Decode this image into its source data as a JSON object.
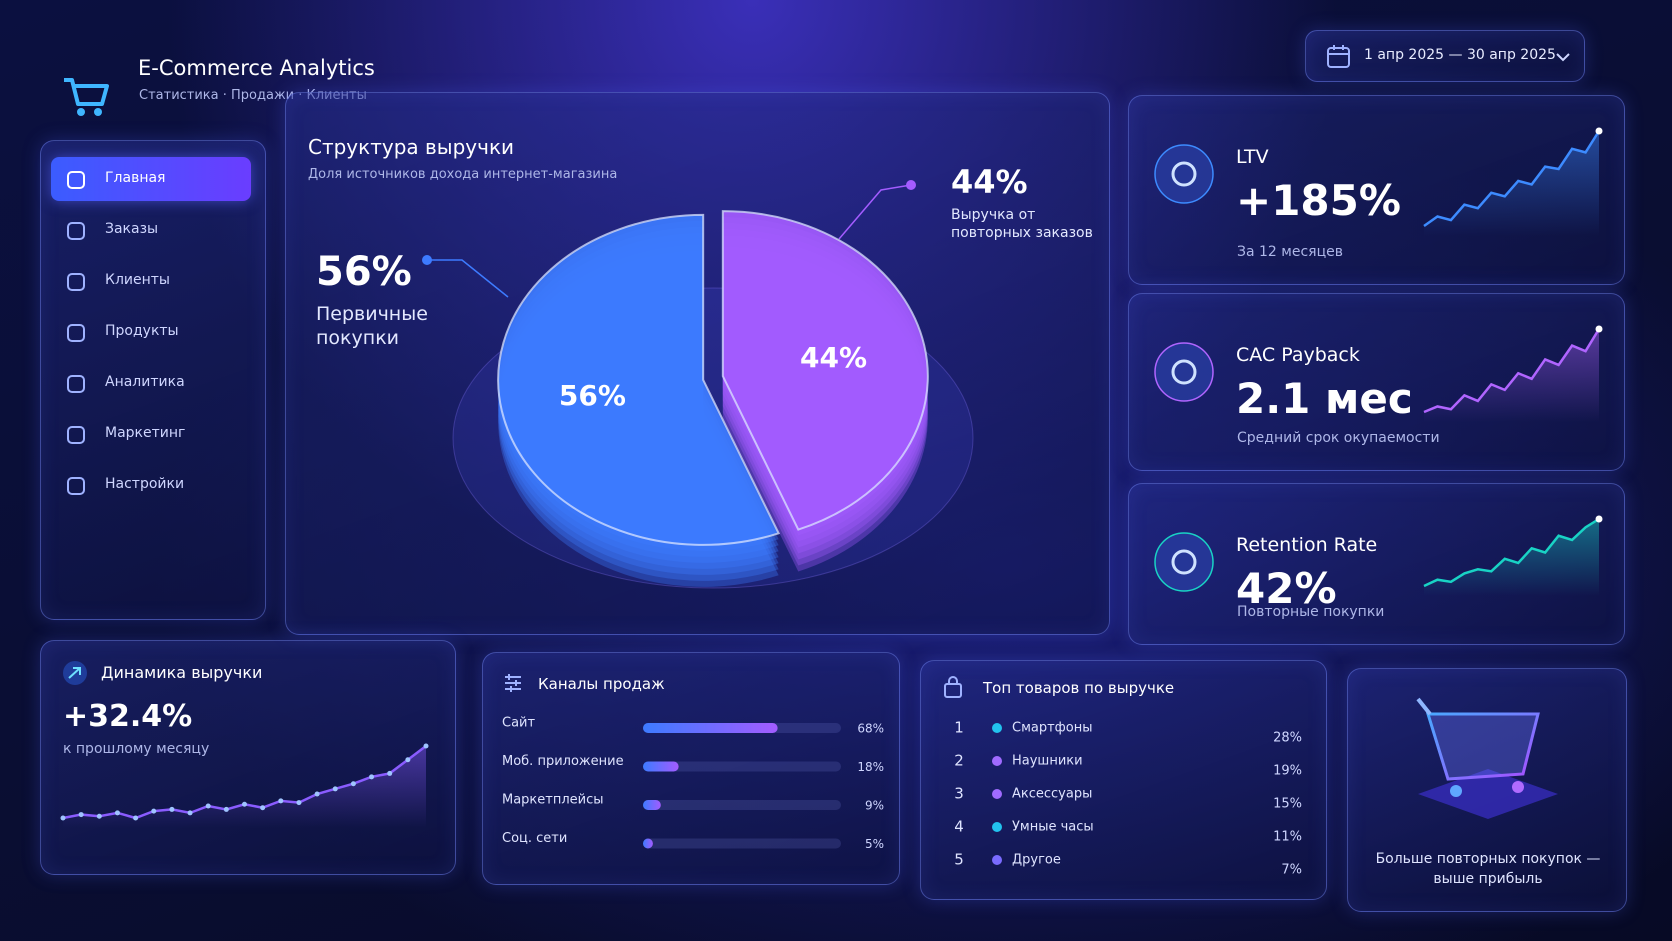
{
  "header": {
    "title": "E-Commerce Analytics",
    "subtitle": "Статистика · Продажи · Клиенты",
    "date_range": "1 апр 2025 — 30 апр 2025"
  },
  "sidebar": {
    "items": [
      "Главная",
      "Заказы",
      "Клиенты",
      "Продукты",
      "Аналитика",
      "Маркетинг",
      "Настройки"
    ]
  },
  "revenue_structure": {
    "type": "pie",
    "title": "Структура выручки",
    "subtitle": "Доля источников дохода интернет-магазина",
    "categories": [
      "Первичные покупки",
      "Выручка от повторных заказов"
    ],
    "values": [
      56,
      44
    ],
    "value_labels": [
      "56%",
      "44%"
    ],
    "colors": [
      "#3d7bff",
      "#a35cff"
    ]
  },
  "kpis": [
    {
      "type": "line",
      "title": "LTV",
      "value": "+185%",
      "caption": "За 12 месяцев",
      "color": "#3d8bff",
      "values": [
        10,
        18,
        15,
        28,
        25,
        38,
        35,
        48,
        45,
        60,
        58,
        75,
        72,
        90
      ]
    },
    {
      "type": "line",
      "title": "CAC Payback",
      "value": "2.1 мес",
      "caption": "Средний срок окупаемости",
      "color": "#b065ff",
      "values": [
        10,
        14,
        12,
        22,
        18,
        30,
        26,
        38,
        34,
        48,
        44,
        58,
        54,
        70
      ]
    },
    {
      "type": "line",
      "title": "Retention Rate",
      "value": "42%",
      "caption": "Повторные покупки",
      "color": "#19d3c5",
      "values": [
        8,
        14,
        12,
        20,
        24,
        22,
        34,
        30,
        44,
        40,
        56,
        52,
        64,
        72
      ]
    }
  ],
  "revenue_dynamics": {
    "type": "line",
    "title": "Динамика выручки",
    "value": "+32.4%",
    "caption": "к прошлому месяцу",
    "color": "#8a5cff",
    "values": [
      10,
      12,
      11,
      13,
      10,
      14,
      15,
      13,
      17,
      15,
      18,
      16,
      20,
      19,
      24,
      27,
      30,
      34,
      36,
      44,
      52
    ]
  },
  "sales_channels": {
    "type": "bar",
    "title": "Каналы продаж",
    "categories": [
      "Сайт",
      "Моб. приложение",
      "Маркетплейсы",
      "Соц. сети"
    ],
    "values": [
      68,
      18,
      9,
      5
    ],
    "value_labels": [
      "68%",
      "18%",
      "9%",
      "5%"
    ]
  },
  "top_products": {
    "title": "Топ товаров по выручке",
    "ranks": [
      1,
      2,
      3,
      4,
      5
    ],
    "items": [
      "Смартфоны",
      "Наушники",
      "Аксессуары",
      "Умные часы",
      "Другое"
    ],
    "values": [
      28,
      19,
      15,
      11,
      7
    ],
    "value_labels": [
      "28%",
      "19%",
      "15%",
      "11%",
      "7%"
    ],
    "colors": [
      "#22c3ee",
      "#a06bff",
      "#a06bff",
      "#22c3ee",
      "#7a6bff"
    ]
  },
  "promo": {
    "text": "Больше повторных покупок — выше прибыль"
  }
}
